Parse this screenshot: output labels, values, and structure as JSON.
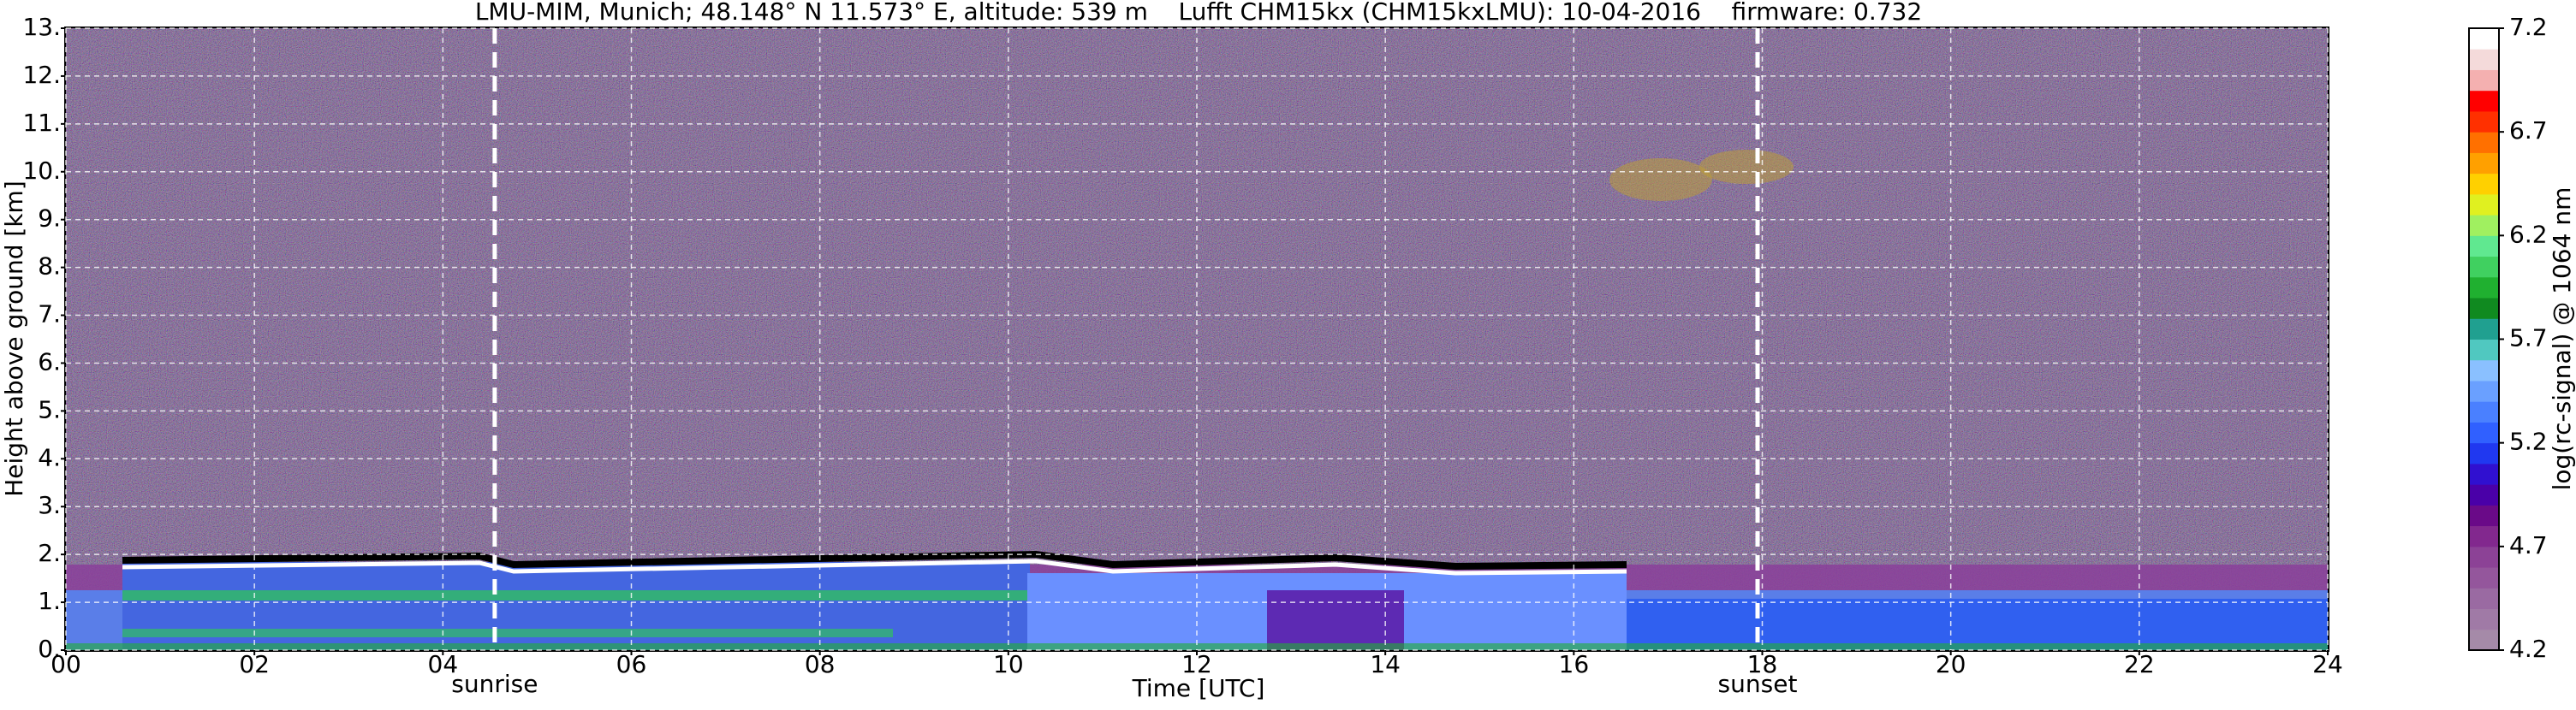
{
  "chart_data": {
    "type": "heatmap",
    "title": "LMU-MIM, Munich; 48.148° N 11.573° E, altitude: 539 m    Lufft CHM15kx (CHM15kxLMU): 10-04-2016    firmware: 0.732",
    "xlabel": "Time [UTC]",
    "ylabel": "Height above ground [km]",
    "xlim": [
      0,
      24
    ],
    "xticks": [
      {
        "value": 0,
        "label": "00"
      },
      {
        "value": 2,
        "label": "02"
      },
      {
        "value": 4,
        "label": "04"
      },
      {
        "value": 6,
        "label": "06"
      },
      {
        "value": 8,
        "label": "08"
      },
      10,
      12,
      14,
      16,
      18,
      20,
      22,
      24
    ],
    "ylim": [
      0,
      13
    ],
    "yticks": [
      {
        "value": 0,
        "label": "0."
      },
      {
        "value": 1,
        "label": "1."
      },
      {
        "value": 2,
        "label": "2."
      },
      {
        "value": 3,
        "label": "3."
      },
      {
        "value": 4,
        "label": "4."
      },
      {
        "value": 5,
        "label": "5."
      },
      {
        "value": 6,
        "label": "6."
      },
      {
        "value": 7,
        "label": "7."
      },
      {
        "value": 8,
        "label": "8."
      },
      {
        "value": 9,
        "label": "9."
      },
      {
        "value": 10,
        "label": "10."
      },
      {
        "value": 11,
        "label": "11."
      },
      {
        "value": 12,
        "label": "12."
      },
      {
        "value": 13,
        "label": "13."
      }
    ],
    "grid": true,
    "annotations": [
      {
        "x": 4.55,
        "label": "sunrise"
      },
      {
        "x": 17.95,
        "label": "sunset"
      }
    ],
    "colorbar": {
      "label": "log(rc-signal) @ 1064 nm",
      "lim": [
        4.2,
        7.2
      ],
      "ticks": [
        4.2,
        4.7,
        5.2,
        5.7,
        6.2,
        6.7,
        7.2
      ],
      "colors": [
        "#a58aa8",
        "#a07aa6",
        "#9a6aa2",
        "#94569c",
        "#8c4296",
        "#82288e",
        "#6a0a88",
        "#4a00a8",
        "#3010d0",
        "#2038f0",
        "#3060ff",
        "#4a80ff",
        "#6aa0ff",
        "#8ac0ff",
        "#50c8c0",
        "#20a090",
        "#108a20",
        "#20b030",
        "#40d060",
        "#60e890",
        "#a0f060",
        "#e0f020",
        "#ffd000",
        "#ffa000",
        "#ff7000",
        "#ff3000",
        "#ff0000",
        "#f4b0b0",
        "#f4dada",
        "#ffffff"
      ]
    }
  }
}
